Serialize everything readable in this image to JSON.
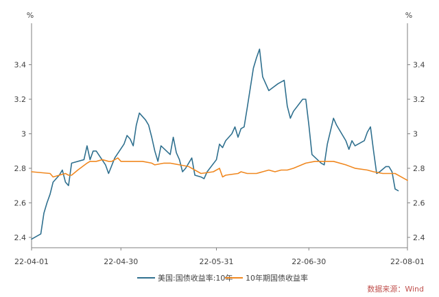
{
  "chart_data": {
    "type": "line",
    "y_unit": "%",
    "x_ticks": [
      {
        "day": 0,
        "label": "22-04-01"
      },
      {
        "day": 29,
        "label": "22-04-30"
      },
      {
        "day": 60,
        "label": "22-05-31"
      },
      {
        "day": 90,
        "label": "22-06-30"
      },
      {
        "day": 122,
        "label": "22-08-01"
      }
    ],
    "y_ticks": [
      2.4,
      2.6,
      2.8,
      3,
      3.2,
      3.4
    ],
    "ylim": [
      2.34,
      3.64
    ],
    "xlim": [
      0,
      122
    ],
    "grid": false,
    "legend_position": "bottom",
    "series": [
      {
        "name": "美国:国债收益率:10年",
        "color": "#2e6f8e",
        "points": [
          [
            0,
            2.39
          ],
          [
            3,
            2.42
          ],
          [
            4,
            2.54
          ],
          [
            5,
            2.6
          ],
          [
            6,
            2.65
          ],
          [
            7,
            2.72
          ],
          [
            9,
            2.76
          ],
          [
            10,
            2.79
          ],
          [
            11,
            2.72
          ],
          [
            12,
            2.7
          ],
          [
            13,
            2.83
          ],
          [
            17,
            2.85
          ],
          [
            18,
            2.93
          ],
          [
            19,
            2.85
          ],
          [
            20,
            2.9
          ],
          [
            21,
            2.9
          ],
          [
            24,
            2.82
          ],
          [
            25,
            2.77
          ],
          [
            27,
            2.86
          ],
          [
            30,
            2.94
          ],
          [
            31,
            2.99
          ],
          [
            32,
            2.97
          ],
          [
            33,
            2.93
          ],
          [
            34,
            3.05
          ],
          [
            35,
            3.12
          ],
          [
            37,
            3.08
          ],
          [
            38,
            3.05
          ],
          [
            39,
            2.98
          ],
          [
            40,
            2.9
          ],
          [
            41,
            2.84
          ],
          [
            42,
            2.93
          ],
          [
            45,
            2.88
          ],
          [
            46,
            2.98
          ],
          [
            47,
            2.89
          ],
          [
            48,
            2.85
          ],
          [
            49,
            2.78
          ],
          [
            50,
            2.8
          ],
          [
            52,
            2.86
          ],
          [
            53,
            2.76
          ],
          [
            55,
            2.75
          ],
          [
            56,
            2.74
          ],
          [
            57,
            2.78
          ],
          [
            60,
            2.85
          ],
          [
            61,
            2.94
          ],
          [
            62,
            2.92
          ],
          [
            63,
            2.96
          ],
          [
            65,
            3.0
          ],
          [
            66,
            3.04
          ],
          [
            67,
            2.98
          ],
          [
            68,
            3.03
          ],
          [
            69,
            3.04
          ],
          [
            70,
            3.15
          ],
          [
            72,
            3.38
          ],
          [
            73,
            3.44
          ],
          [
            74,
            3.49
          ],
          [
            75,
            3.33
          ],
          [
            77,
            3.25
          ],
          [
            80,
            3.29
          ],
          [
            82,
            3.31
          ],
          [
            83,
            3.16
          ],
          [
            84,
            3.09
          ],
          [
            85,
            3.13
          ],
          [
            88,
            3.2
          ],
          [
            89,
            3.2
          ],
          [
            90,
            3.05
          ],
          [
            91,
            2.88
          ],
          [
            94,
            2.83
          ],
          [
            95,
            2.82
          ],
          [
            96,
            2.94
          ],
          [
            98,
            3.09
          ],
          [
            99,
            3.05
          ],
          [
            102,
            2.96
          ],
          [
            103,
            2.91
          ],
          [
            104,
            2.96
          ],
          [
            105,
            2.93
          ],
          [
            108,
            2.96
          ],
          [
            109,
            3.01
          ],
          [
            110,
            3.04
          ],
          [
            111,
            2.9
          ],
          [
            112,
            2.77
          ],
          [
            113,
            2.78
          ],
          [
            115,
            2.81
          ],
          [
            116,
            2.81
          ],
          [
            117,
            2.78
          ],
          [
            118,
            2.68
          ],
          [
            119,
            2.67
          ]
        ]
      },
      {
        "name": "10年期国债收益率",
        "color": "#f0871e",
        "points": [
          [
            0,
            2.78
          ],
          [
            6,
            2.77
          ],
          [
            7,
            2.75
          ],
          [
            9,
            2.76
          ],
          [
            11,
            2.77
          ],
          [
            12,
            2.76
          ],
          [
            13,
            2.76
          ],
          [
            15,
            2.79
          ],
          [
            18,
            2.83
          ],
          [
            19,
            2.84
          ],
          [
            21,
            2.84
          ],
          [
            23,
            2.85
          ],
          [
            25,
            2.84
          ],
          [
            26,
            2.84
          ],
          [
            28,
            2.86
          ],
          [
            29,
            2.84
          ],
          [
            33,
            2.84
          ],
          [
            36,
            2.84
          ],
          [
            39,
            2.83
          ],
          [
            40,
            2.82
          ],
          [
            43,
            2.83
          ],
          [
            45,
            2.83
          ],
          [
            48,
            2.82
          ],
          [
            51,
            2.81
          ],
          [
            55,
            2.77
          ],
          [
            59,
            2.78
          ],
          [
            61,
            2.8
          ],
          [
            62,
            2.75
          ],
          [
            63,
            2.76
          ],
          [
            67,
            2.77
          ],
          [
            68,
            2.78
          ],
          [
            70,
            2.77
          ],
          [
            73,
            2.77
          ],
          [
            75,
            2.78
          ],
          [
            77,
            2.79
          ],
          [
            79,
            2.78
          ],
          [
            81,
            2.79
          ],
          [
            83,
            2.79
          ],
          [
            85,
            2.8
          ],
          [
            89,
            2.83
          ],
          [
            92,
            2.84
          ],
          [
            95,
            2.84
          ],
          [
            98,
            2.84
          ],
          [
            102,
            2.82
          ],
          [
            105,
            2.8
          ],
          [
            109,
            2.79
          ],
          [
            111,
            2.78
          ],
          [
            114,
            2.77
          ],
          [
            118,
            2.77
          ],
          [
            121,
            2.74
          ],
          [
            122,
            2.73
          ]
        ]
      }
    ]
  },
  "legend": [
    {
      "label": "美国:国债收益率:10年",
      "color": "#2e6f8e"
    },
    {
      "label": "10年期国债收益率",
      "color": "#f0871e"
    }
  ],
  "source": "数据来源：Wind"
}
